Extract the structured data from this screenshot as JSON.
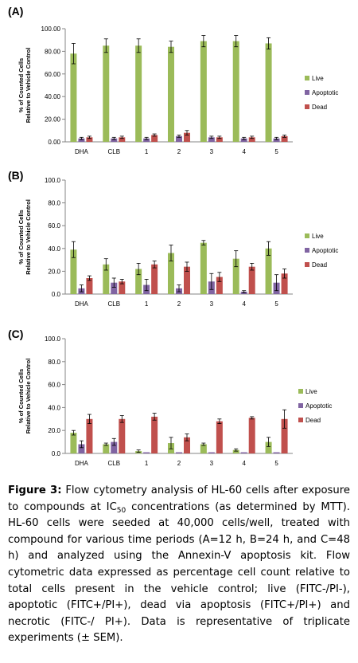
{
  "chart_data": [
    {
      "type": "bar",
      "panel": "(A)",
      "ylabel": "% of Counted Cells",
      "ylabel2": "Relative to Vehicle Control",
      "ylim": [
        0,
        100
      ],
      "yticks": [
        "0.00",
        "20.00",
        "40.00",
        "60.00",
        "80.00",
        "100.00"
      ],
      "categories": [
        "DHA",
        "CLB",
        "1",
        "2",
        "3",
        "4",
        "5"
      ],
      "legend_placement": "right",
      "series": [
        {
          "name": "Live",
          "color": "#9bbb59",
          "values": [
            78,
            85,
            85,
            84,
            89,
            89,
            87
          ],
          "err": [
            9,
            6,
            6,
            5,
            5,
            5,
            5
          ]
        },
        {
          "name": "Apoptotic",
          "color": "#8064a2",
          "values": [
            3,
            3,
            3,
            5,
            4,
            3,
            3
          ],
          "err": [
            1,
            1,
            1,
            1,
            1,
            1,
            1
          ]
        },
        {
          "name": "Dead",
          "color": "#c0504d",
          "values": [
            4,
            4,
            6,
            8,
            4,
            4,
            5
          ],
          "err": [
            1,
            1,
            1,
            2,
            1,
            1,
            1
          ]
        }
      ]
    },
    {
      "type": "bar",
      "panel": "(B)",
      "ylabel": "% of Counted Cells",
      "ylabel2": "Relative to Vehicle Control",
      "ylim": [
        0,
        100
      ],
      "yticks": [
        "0.0",
        "20.0",
        "40.0",
        "60.0",
        "80.0",
        "100.0"
      ],
      "categories": [
        "DHA",
        "CLB",
        "1",
        "2",
        "3",
        "4",
        "5"
      ],
      "legend_placement": "right",
      "series": [
        {
          "name": "Live",
          "color": "#9bbb59",
          "values": [
            39,
            26,
            22,
            36,
            45,
            31,
            40
          ],
          "err": [
            7,
            5,
            5,
            7,
            2,
            7,
            6
          ]
        },
        {
          "name": "Apoptotic",
          "color": "#8064a2",
          "values": [
            5,
            10,
            8,
            5,
            11,
            2,
            10
          ],
          "err": [
            3,
            4,
            5,
            3,
            7,
            1,
            7
          ]
        },
        {
          "name": "Dead",
          "color": "#c0504d",
          "values": [
            14,
            11,
            26,
            24,
            15,
            24,
            18
          ],
          "err": [
            2,
            2,
            3,
            4,
            4,
            3,
            4
          ]
        }
      ]
    },
    {
      "type": "bar",
      "panel": "(C)",
      "ylabel": "% of Counted Cells",
      "ylabel2": "Relative to Vehicle Control",
      "ylim": [
        0,
        100
      ],
      "yticks": [
        "0.0",
        "20.0",
        "40.0",
        "60.0",
        "80.0",
        "100.0"
      ],
      "categories": [
        "DHA",
        "CLB",
        "1",
        "2",
        "3",
        "4",
        "5"
      ],
      "legend_placement": "right",
      "series": [
        {
          "name": "Live",
          "color": "#9bbb59",
          "values": [
            18,
            8,
            2,
            9,
            8,
            3,
            10
          ],
          "err": [
            2,
            1,
            1,
            5,
            1,
            1,
            4
          ]
        },
        {
          "name": "Apoptotic",
          "color": "#8064a2",
          "values": [
            8,
            10,
            1,
            1,
            1,
            1,
            1
          ],
          "err": [
            3,
            3,
            0,
            0,
            0,
            0,
            0
          ]
        },
        {
          "name": "Dead",
          "color": "#c0504d",
          "values": [
            30,
            30,
            32,
            14,
            28,
            31,
            30
          ],
          "err": [
            4,
            3,
            3,
            3,
            2,
            1,
            8
          ]
        }
      ]
    }
  ],
  "caption": {
    "figure_label": "Figure 3:",
    "text_before_sub": " Flow cytometry analysis of HL-60 cells after exposure to compounds at IC",
    "sub": "50",
    "text_after_sub": " concentrations (as determined by MTT). HL-60 cells were seeded at 40,000 cells/well, treated with compound for various time periods (A=12 h, B=24 h, and C=48 h) and analyzed using the Annexin-V apoptosis kit. Flow cytometric data expressed as percentage cell count relative to total cells present in the vehicle control; live (FITC-/PI-), apoptotic (FITC+/PI+), dead via apoptosis (FITC+/PI+) and necrotic (FITC-/ PI+). Data is representative of triplicate experiments (± SEM)."
  }
}
